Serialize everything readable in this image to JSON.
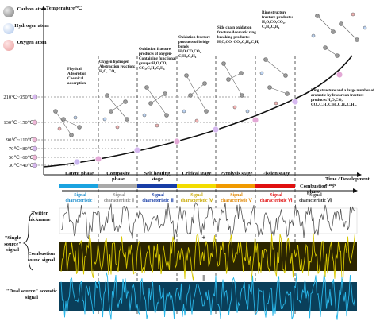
{
  "legend": {
    "carbon": {
      "label": "Carbon atom",
      "color": "#8c8c8c"
    },
    "hydrogen": {
      "label": "Hydrogen atom",
      "color": "#bcd3f2"
    },
    "oxygen": {
      "label": "Oxygen atom",
      "color": "#f2b3b3"
    }
  },
  "axes": {
    "y_label": "Temperature/℃",
    "x_label": "Time / Development stage"
  },
  "temperature_ticks": [
    "210℃~350℃",
    "130℃~150℃",
    "90℃~110℃",
    "70℃~80℃",
    "50℃~60℃",
    "30℃~40℃"
  ],
  "annotations": {
    "physical": "Physical Adsorption\nChemical adsorption",
    "oxygen_hydrogen": "Oxygen hydrogen Abstraction reaction: H₂O, CO₂",
    "oxidation_products": "Oxidation fracture products of oxygen-Containing functional groups:H₂O,CO, CO₂,C₂H₄,C₂H₆",
    "bridge_bonds": "Oxidation fracture products of bridge bonds\nH₂O,CO,CO₂, C₂H₄,C₂H₆",
    "side_chain": "Side chain oxidation fracture Aromatic ring breaking products: H₂O,CO, CO₂,C₂H₄,C₂H₆",
    "ring_fracture": "Ring structure fracture products: H₂O,CO,CO₂, C₂H₄,C₂H₆",
    "ring_large": "Ring structure and a large number of aromatic hydrocarbon fracture products:H₂O,CO, CO₂,C₂H₄,C₂H₆,C₃H₈,C₆H₁₀"
  },
  "phases": [
    {
      "name": "Latent phase",
      "color": "#1aa3e0",
      "signal": "Signal characteristic Ⅰ",
      "signal_color": "#1a8ccc"
    },
    {
      "name": "Composite phase",
      "color": "#a9a9a9",
      "signal": "Signal characteristic Ⅱ",
      "signal_color": "#8c8c8c"
    },
    {
      "name": "Self heating stage",
      "color": "#173da6",
      "signal": "Signal characteristic Ⅲ",
      "signal_color": "#173da6"
    },
    {
      "name": "Critical stage",
      "color": "#f2dc00",
      "signal": "Signal characteristic Ⅳ",
      "signal_color": "#c9a800"
    },
    {
      "name": "Pyrolysis stage",
      "color": "#f09a00",
      "signal": "Signal characteristic Ⅴ",
      "signal_color": "#e08600"
    },
    {
      "name": "Fission stage",
      "color": "#e01010",
      "signal": "Signal characteristic Ⅵ",
      "signal_color": "#e01010"
    },
    {
      "name": "Combustion phase",
      "color": "#ffffff",
      "signal": "Signal characteristic Ⅶ",
      "signal_color": "#333333"
    }
  ],
  "signals": {
    "twitter": "Twitter nickname",
    "single_source": "\"Single source\" signal",
    "combustion": "Combustion sound signal",
    "dual_source": "\"Dual source\" acoustic signal",
    "plus": "+",
    "equals": "||"
  }
}
